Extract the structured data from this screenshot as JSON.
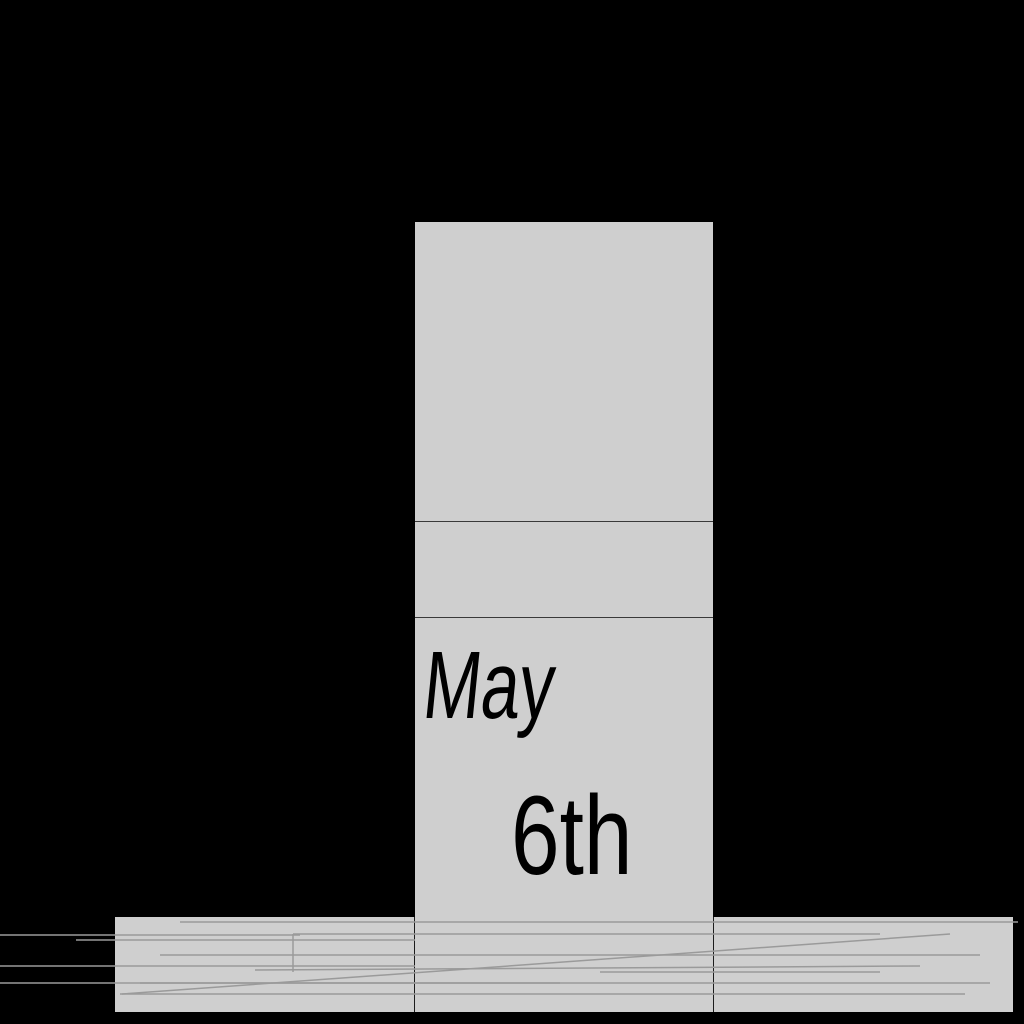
{
  "date_card": {
    "month": "May",
    "day": "6th"
  },
  "colors": {
    "background": "#000000",
    "panel": "#cfcfcf",
    "text": "#000000"
  }
}
